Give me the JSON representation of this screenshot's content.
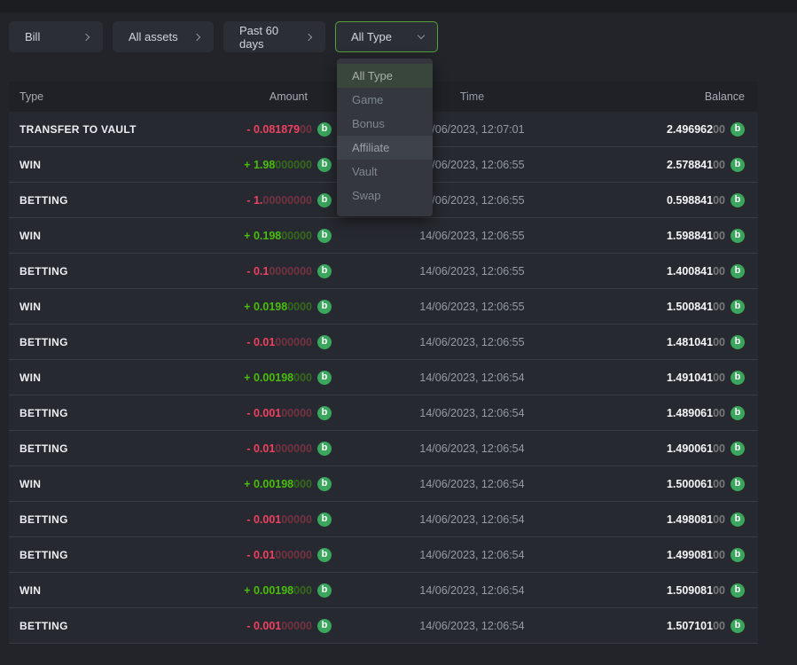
{
  "colors": {
    "positive": "#4abe0b",
    "negative": "#ee4163",
    "coin": "#3aa55c",
    "active_border": "#55a038"
  },
  "coin": {
    "symbol": "b",
    "name": "green-coin"
  },
  "filters": [
    {
      "label": "Bill",
      "chevron": "right"
    },
    {
      "label": "All assets",
      "chevron": "right"
    },
    {
      "label": "Past 60 days",
      "chevron": "right"
    },
    {
      "label": "All Type",
      "chevron": "down",
      "active": true
    }
  ],
  "dropdown": {
    "items": [
      {
        "label": "All Type",
        "state": "selected"
      },
      {
        "label": "Game",
        "state": "normal"
      },
      {
        "label": "Bonus",
        "state": "normal"
      },
      {
        "label": "Affiliate",
        "state": "hovered"
      },
      {
        "label": "Vault",
        "state": "normal"
      },
      {
        "label": "Swap",
        "state": "normal"
      }
    ]
  },
  "table": {
    "headers": [
      "Type",
      "Amount",
      "Time",
      "Balance"
    ],
    "rows": [
      {
        "type": "TRANSFER TO VAULT",
        "amount": {
          "bright": "- 0.081879",
          "dim": "00",
          "polarity": "negative"
        },
        "time": "14/06/2023, 12:07:01",
        "balance": {
          "bright": "2.496962",
          "dim": "00"
        }
      },
      {
        "type": "WIN",
        "amount": {
          "bright": "+ 1.98",
          "dim": "000000",
          "polarity": "positive"
        },
        "time": "14/06/2023, 12:06:55",
        "balance": {
          "bright": "2.578841",
          "dim": "00"
        }
      },
      {
        "type": "BETTING",
        "amount": {
          "bright": "- 1.",
          "dim": "00000000",
          "polarity": "negative"
        },
        "time": "14/06/2023, 12:06:55",
        "balance": {
          "bright": "0.598841",
          "dim": "00"
        }
      },
      {
        "type": "WIN",
        "amount": {
          "bright": "+ 0.198",
          "dim": "00000",
          "polarity": "positive"
        },
        "time": "14/06/2023, 12:06:55",
        "balance": {
          "bright": "1.598841",
          "dim": "00"
        }
      },
      {
        "type": "BETTING",
        "amount": {
          "bright": "- 0.1",
          "dim": "0000000",
          "polarity": "negative"
        },
        "time": "14/06/2023, 12:06:55",
        "balance": {
          "bright": "1.400841",
          "dim": "00"
        }
      },
      {
        "type": "WIN",
        "amount": {
          "bright": "+ 0.0198",
          "dim": "0000",
          "polarity": "positive"
        },
        "time": "14/06/2023, 12:06:55",
        "balance": {
          "bright": "1.500841",
          "dim": "00"
        }
      },
      {
        "type": "BETTING",
        "amount": {
          "bright": "- 0.01",
          "dim": "000000",
          "polarity": "negative"
        },
        "time": "14/06/2023, 12:06:55",
        "balance": {
          "bright": "1.481041",
          "dim": "00"
        }
      },
      {
        "type": "WIN",
        "amount": {
          "bright": "+ 0.00198",
          "dim": "000",
          "polarity": "positive"
        },
        "time": "14/06/2023, 12:06:54",
        "balance": {
          "bright": "1.491041",
          "dim": "00"
        }
      },
      {
        "type": "BETTING",
        "amount": {
          "bright": "- 0.001",
          "dim": "00000",
          "polarity": "negative"
        },
        "time": "14/06/2023, 12:06:54",
        "balance": {
          "bright": "1.489061",
          "dim": "00"
        }
      },
      {
        "type": "BETTING",
        "amount": {
          "bright": "- 0.01",
          "dim": "000000",
          "polarity": "negative"
        },
        "time": "14/06/2023, 12:06:54",
        "balance": {
          "bright": "1.490061",
          "dim": "00"
        }
      },
      {
        "type": "WIN",
        "amount": {
          "bright": "+ 0.00198",
          "dim": "000",
          "polarity": "positive"
        },
        "time": "14/06/2023, 12:06:54",
        "balance": {
          "bright": "1.500061",
          "dim": "00"
        }
      },
      {
        "type": "BETTING",
        "amount": {
          "bright": "- 0.001",
          "dim": "00000",
          "polarity": "negative"
        },
        "time": "14/06/2023, 12:06:54",
        "balance": {
          "bright": "1.498081",
          "dim": "00"
        }
      },
      {
        "type": "BETTING",
        "amount": {
          "bright": "- 0.01",
          "dim": "000000",
          "polarity": "negative"
        },
        "time": "14/06/2023, 12:06:54",
        "balance": {
          "bright": "1.499081",
          "dim": "00"
        }
      },
      {
        "type": "WIN",
        "amount": {
          "bright": "+ 0.00198",
          "dim": "000",
          "polarity": "positive"
        },
        "time": "14/06/2023, 12:06:54",
        "balance": {
          "bright": "1.509081",
          "dim": "00"
        }
      },
      {
        "type": "BETTING",
        "amount": {
          "bright": "- 0.001",
          "dim": "00000",
          "polarity": "negative"
        },
        "time": "14/06/2023, 12:06:54",
        "balance": {
          "bright": "1.507101",
          "dim": "00"
        }
      }
    ]
  }
}
